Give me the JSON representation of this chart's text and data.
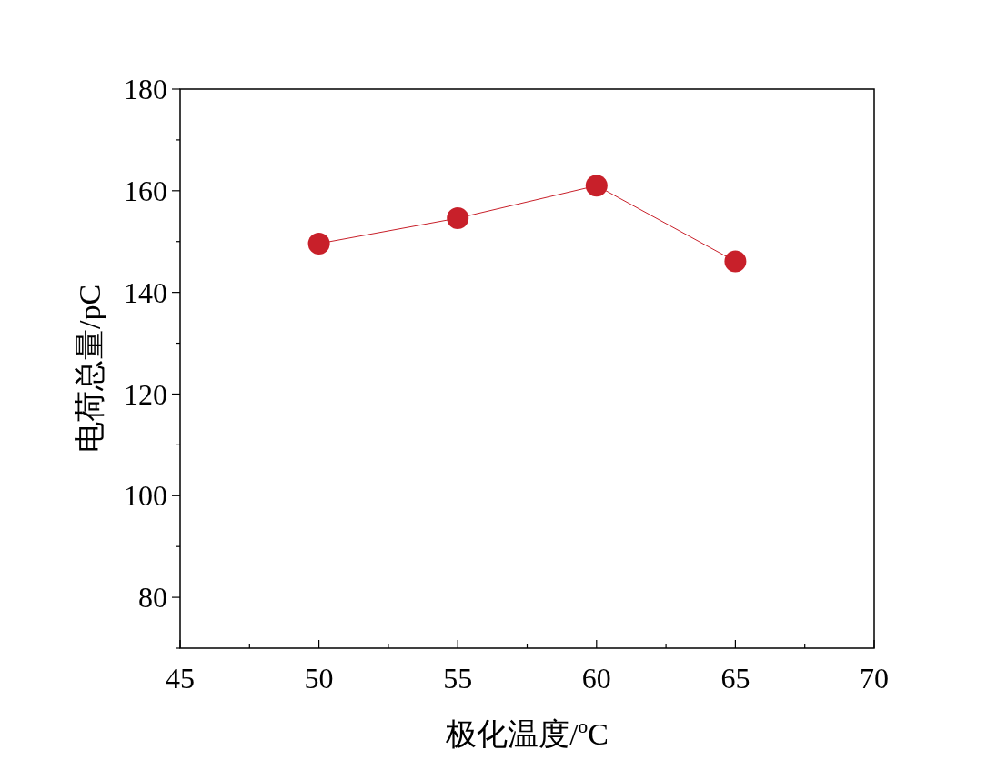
{
  "chart_data": {
    "type": "line",
    "xlabel": "极化温度/ºC",
    "ylabel": "电荷总量/pC",
    "x": [
      50,
      55,
      60,
      65
    ],
    "series": [
      {
        "color": "#c8202a",
        "values": [
          149.6,
          154.6,
          161.0,
          146.1
        ]
      }
    ],
    "marker": "circle",
    "line_style": "solid",
    "grid": false,
    "xlim": [
      45,
      70
    ],
    "xticks": [
      45,
      {
        "value": 47.5,
        "label": null
      },
      50,
      {
        "value": 52.5,
        "label": null
      },
      55,
      {
        "value": 57.5,
        "label": null
      },
      60,
      {
        "value": 62.5,
        "label": null
      },
      65,
      {
        "value": 67.5,
        "label": null
      },
      70
    ],
    "ylim": [
      70,
      180
    ],
    "yticks": [
      {
        "value": 70,
        "label": null
      },
      80,
      {
        "value": 90,
        "label": null
      },
      100,
      {
        "value": 110,
        "label": null
      },
      120,
      {
        "value": 130,
        "label": null
      },
      140,
      {
        "value": 150,
        "label": null
      },
      160,
      {
        "value": 170,
        "label": null
      },
      180
    ]
  }
}
